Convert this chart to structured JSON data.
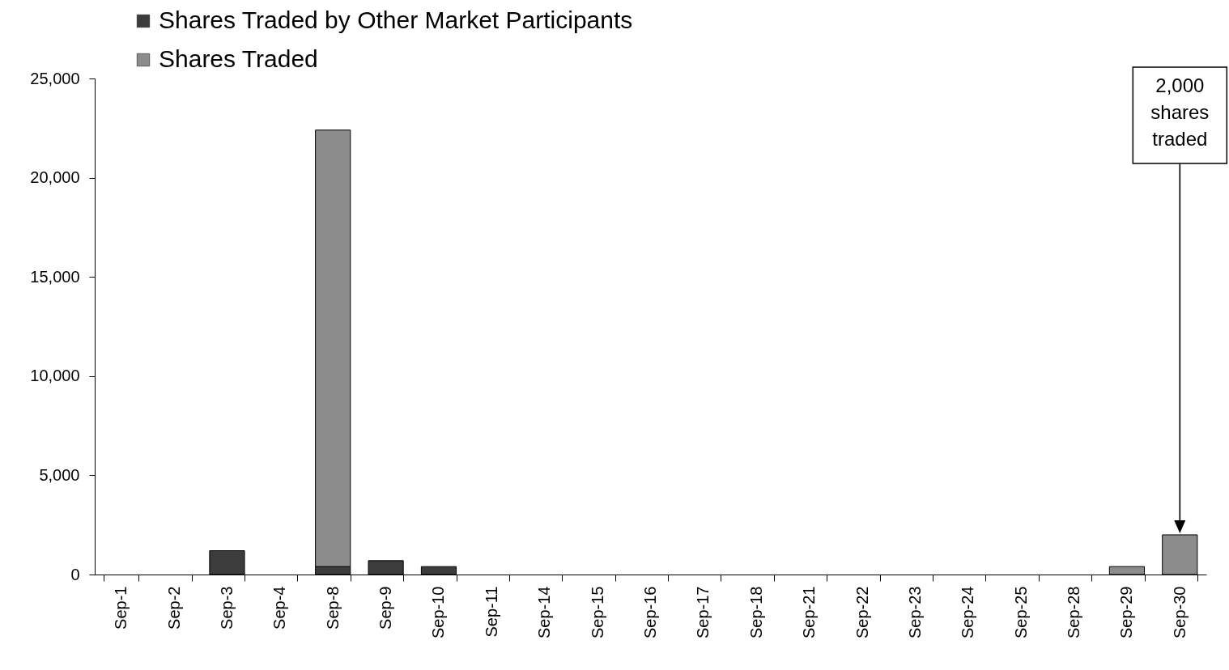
{
  "chart_data": {
    "type": "bar",
    "stacked": true,
    "categories": [
      "Sep-1",
      "Sep-2",
      "Sep-3",
      "Sep-4",
      "Sep-8",
      "Sep-9",
      "Sep-10",
      "Sep-11",
      "Sep-14",
      "Sep-15",
      "Sep-16",
      "Sep-17",
      "Sep-18",
      "Sep-21",
      "Sep-22",
      "Sep-23",
      "Sep-24",
      "Sep-25",
      "Sep-28",
      "Sep-29",
      "Sep-30"
    ],
    "series": [
      {
        "name": "Shares Traded by Other Market Participants",
        "color": "#3c3c3c",
        "values": [
          null,
          null,
          1200,
          null,
          400,
          700,
          400,
          null,
          null,
          null,
          null,
          null,
          null,
          null,
          null,
          null,
          null,
          null,
          null,
          null,
          null
        ]
      },
      {
        "name": "Shares Traded",
        "color": "#8c8c8c",
        "values": [
          null,
          null,
          null,
          null,
          22000,
          null,
          null,
          null,
          null,
          null,
          null,
          null,
          null,
          null,
          null,
          null,
          null,
          null,
          null,
          400,
          2000
        ]
      }
    ],
    "ylim": [
      0,
      25000
    ],
    "yticks": [
      {
        "value": 0,
        "label": "0"
      },
      {
        "value": 5000,
        "label": "5,000"
      },
      {
        "value": 10000,
        "label": "10,000"
      },
      {
        "value": 15000,
        "label": "15,000"
      },
      {
        "value": 20000,
        "label": "20,000"
      },
      {
        "value": 25000,
        "label": "25,000"
      }
    ],
    "grid": false,
    "legend": "top left",
    "annotations": [
      "2,000 shares traded"
    ]
  }
}
